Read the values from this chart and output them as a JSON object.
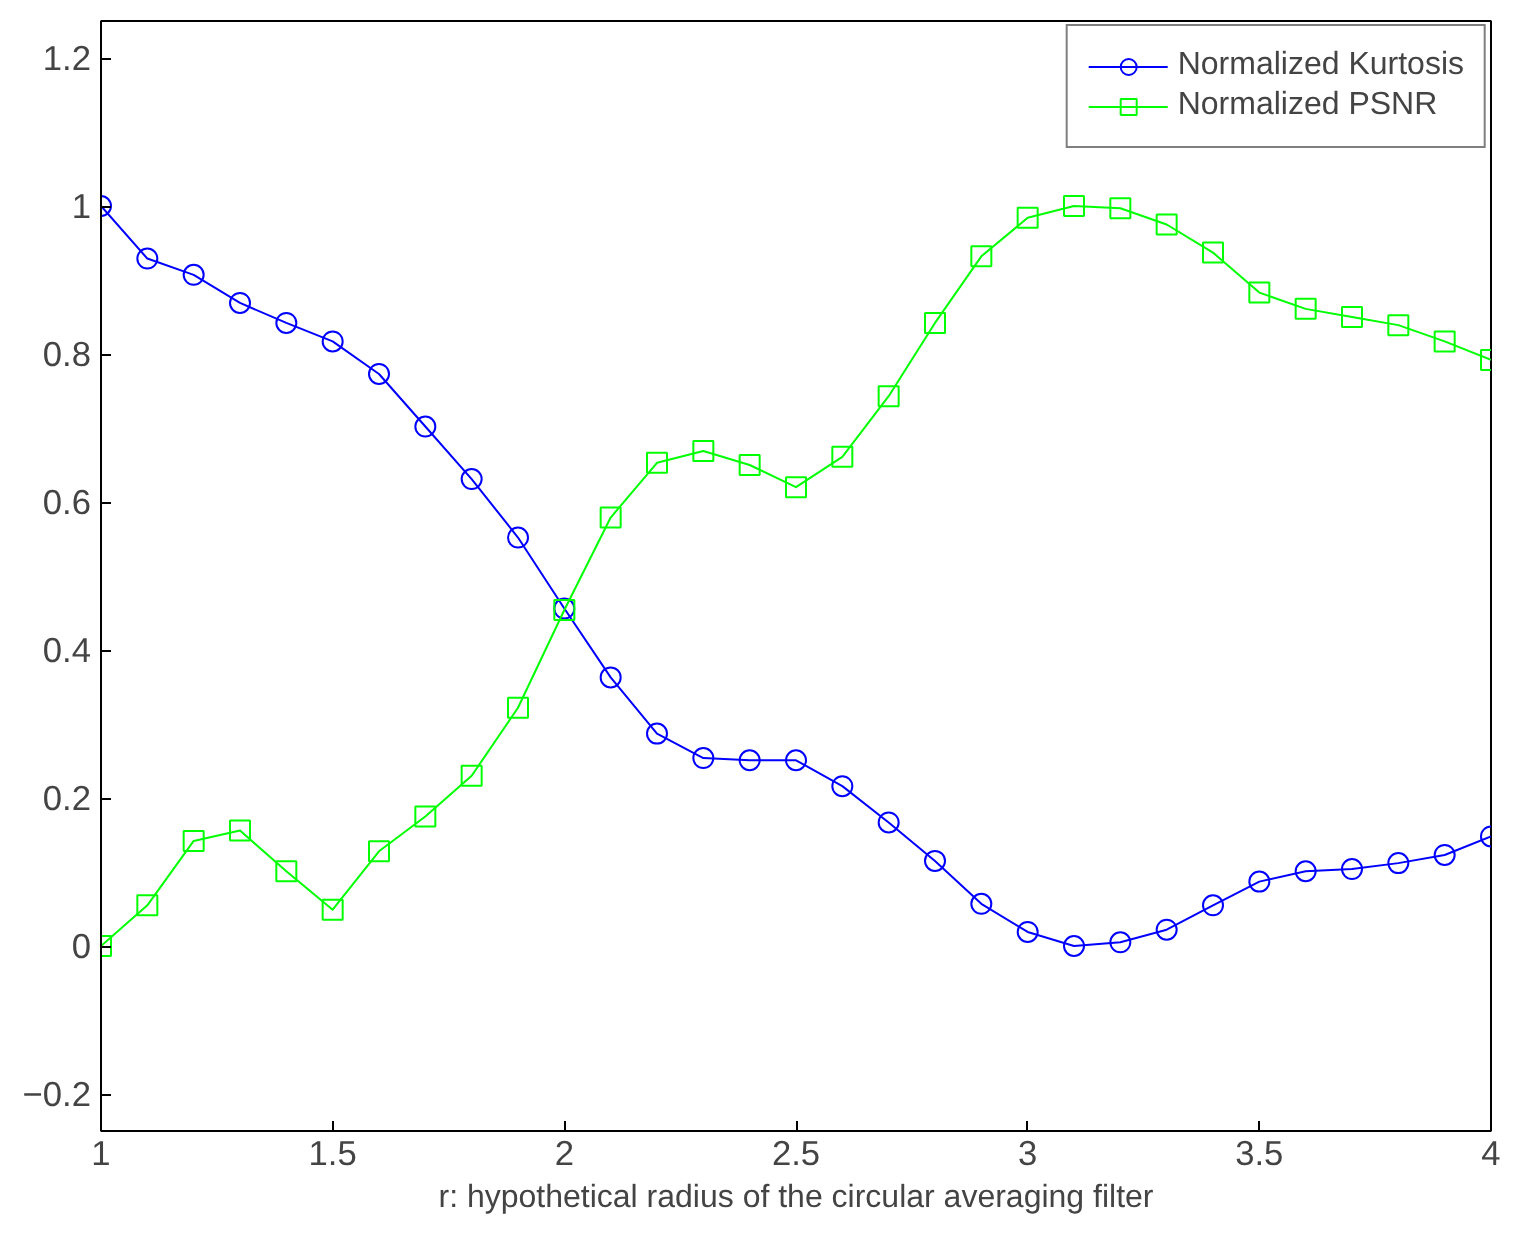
{
  "chart_data": {
    "type": "line",
    "xlabel": "r: hypothetical radius of the circular averaging filter",
    "x": [
      1,
      1.1,
      1.2,
      1.3,
      1.4,
      1.5,
      1.6,
      1.7,
      1.8,
      1.9,
      2,
      2.1,
      2.2,
      2.3,
      2.4,
      2.5,
      2.6,
      2.7,
      2.8,
      2.9,
      3,
      3.1,
      3.2,
      3.3,
      3.4,
      3.5,
      3.6,
      3.7,
      3.8,
      3.9,
      4
    ],
    "series": [
      {
        "name": "Normalized Kurtosis",
        "color": "#0000ff",
        "marker": "circle",
        "values": [
          1.0,
          0.929,
          0.907,
          0.869,
          0.842,
          0.817,
          0.773,
          0.702,
          0.631,
          0.552,
          0.456,
          0.363,
          0.287,
          0.254,
          0.251,
          0.251,
          0.216,
          0.167,
          0.115,
          0.057,
          0.019,
          0.0,
          0.005,
          0.022,
          0.055,
          0.087,
          0.101,
          0.104,
          0.112,
          0.123,
          0.148
        ]
      },
      {
        "name": "Normalized PSNR",
        "color": "#00ff00",
        "marker": "square",
        "values": [
          0.0,
          0.055,
          0.142,
          0.156,
          0.101,
          0.049,
          0.128,
          0.175,
          0.23,
          0.322,
          0.454,
          0.579,
          0.653,
          0.669,
          0.65,
          0.62,
          0.661,
          0.743,
          0.842,
          0.932,
          0.984,
          1.0,
          0.997,
          0.975,
          0.937,
          0.883,
          0.861,
          0.85,
          0.839,
          0.817,
          0.792
        ]
      }
    ],
    "xlim": [
      1,
      4
    ],
    "xticks": [
      1,
      1.5,
      2,
      2.5,
      3,
      3.5,
      4
    ],
    "ylim": [
      -0.25,
      1.25
    ],
    "yticks": [
      {
        "value": -0.2,
        "label": "−0.2"
      },
      0,
      0.2,
      0.4,
      0.6,
      0.8,
      1,
      1.2
    ],
    "grid": false,
    "legend": "top right",
    "line_style": "solid"
  }
}
